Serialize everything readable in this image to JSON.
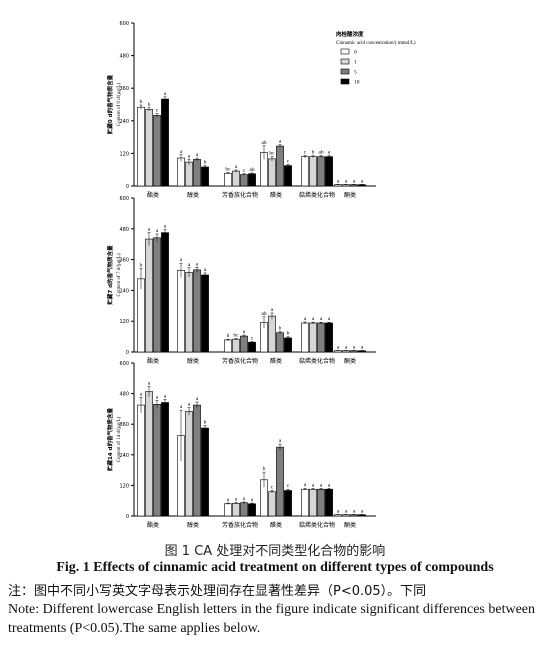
{
  "chart_data": [
    {
      "type": "bar",
      "ylabel_zh": "贮藏0 d的香气物质含量",
      "ylabel_en": "Content of 0 d/(μg/L)",
      "yticks": [
        "0",
        "120",
        "240",
        "360",
        "480",
        "600"
      ],
      "ylim": [
        0,
        600
      ],
      "categories": [
        "酯类",
        "醇类",
        "芳香族化合物",
        "醛类",
        "萜烯类化合物",
        "酮类"
      ],
      "series": [
        {
          "name": "0",
          "values": [
            290,
            103,
            47,
            123,
            108,
            5
          ],
          "errors": [
            8,
            12,
            3,
            25,
            5,
            1
          ],
          "letters": [
            "b",
            "a",
            "bc",
            "ab",
            "c",
            "a"
          ]
        },
        {
          "name": "1",
          "values": [
            282,
            88,
            55,
            100,
            108,
            5
          ],
          "errors": [
            6,
            10,
            4,
            8,
            4,
            1
          ],
          "letters": [
            "b",
            "a",
            "a",
            "bc",
            "b",
            "a"
          ]
        },
        {
          "name": "5",
          "values": [
            260,
            98,
            42,
            147,
            108,
            5
          ],
          "errors": [
            7,
            5,
            3,
            5,
            4,
            1
          ],
          "letters": [
            "c",
            "a",
            "c",
            "a",
            "ab",
            "a"
          ]
        },
        {
          "name": "10",
          "values": [
            320,
            70,
            45,
            75,
            108,
            5
          ],
          "errors": [
            8,
            5,
            3,
            5,
            4,
            1
          ],
          "letters": [
            "a",
            "b",
            "ab",
            "c",
            "a",
            "a"
          ]
        }
      ]
    },
    {
      "type": "bar",
      "ylabel_zh": "贮藏7 d的香气物质含量",
      "ylabel_en": "Content of 7 d/(μg/L)",
      "yticks": [
        "0",
        "120",
        "240",
        "360",
        "480",
        "600"
      ],
      "ylim": [
        0,
        600
      ],
      "categories": [
        "酯类",
        "醇类",
        "芳香族化合物",
        "醛类",
        "萜烯类化合物",
        "酮类"
      ],
      "series": [
        {
          "name": "0",
          "values": [
            285,
            318,
            47,
            115,
            113,
            5
          ],
          "errors": [
            40,
            28,
            3,
            22,
            4,
            1
          ],
          "letters": [
            "b",
            "a",
            "b",
            "ab",
            "a",
            "a"
          ]
        },
        {
          "name": "1",
          "values": [
            440,
            310,
            50,
            140,
            113,
            5
          ],
          "errors": [
            25,
            18,
            3,
            12,
            3,
            1
          ],
          "letters": [
            "a",
            "a",
            "bc",
            "a",
            "a",
            "a"
          ]
        },
        {
          "name": "5",
          "values": [
            445,
            320,
            62,
            75,
            113,
            5
          ],
          "errors": [
            15,
            10,
            4,
            5,
            3,
            1
          ],
          "letters": [
            "a",
            "a",
            "a",
            "b",
            "a",
            "a"
          ]
        },
        {
          "name": "10",
          "values": [
            465,
            300,
            38,
            55,
            113,
            5
          ],
          "errors": [
            12,
            8,
            3,
            5,
            3,
            1
          ],
          "letters": [
            "a",
            "a",
            "c",
            "b",
            "a",
            "a"
          ]
        }
      ]
    },
    {
      "type": "bar",
      "ylabel_zh": "贮藏14 d的香气物质含量",
      "ylabel_en": "Content of 14 d/(μg/L)",
      "yticks": [
        "0",
        "120",
        "240",
        "360",
        "480",
        "600"
      ],
      "ylim": [
        0,
        600
      ],
      "categories": [
        "酯类",
        "醇类",
        "芳香族化合物",
        "醛类",
        "萜烯类化合物",
        "酮类"
      ],
      "series": [
        {
          "name": "0",
          "values": [
            435,
            315,
            48,
            142,
            105,
            5
          ],
          "errors": [
            30,
            100,
            3,
            30,
            4,
            1
          ],
          "letters": [
            "a",
            "a",
            "a",
            "b",
            "a",
            "a"
          ]
        },
        {
          "name": "1",
          "values": [
            488,
            410,
            50,
            95,
            105,
            5
          ],
          "errors": [
            20,
            15,
            3,
            5,
            3,
            1
          ],
          "letters": [
            "a",
            "a",
            "a",
            "c",
            "a",
            "a"
          ]
        },
        {
          "name": "5",
          "values": [
            438,
            435,
            52,
            270,
            105,
            5
          ],
          "errors": [
            15,
            12,
            3,
            12,
            3,
            1
          ],
          "letters": [
            "a",
            "a",
            "a",
            "a",
            "a",
            "a"
          ]
        },
        {
          "name": "10",
          "values": [
            445,
            345,
            48,
            100,
            105,
            5
          ],
          "errors": [
            12,
            10,
            3,
            5,
            3,
            1
          ],
          "letters": [
            "a",
            "b",
            "a",
            "c",
            "a",
            "a"
          ]
        }
      ]
    }
  ],
  "legend": {
    "title_zh": "肉桂酸浓度",
    "title_en": "Cinnamic acid concentration/( mmol/L)",
    "placement": "top-right"
  },
  "series_colors": [
    "#ffffff",
    "#d6d6d6",
    "#7f7f7f",
    "#000000"
  ],
  "caption": {
    "zh": "图 1 CA 处理对不同类型化合物的影响",
    "en": "Fig. 1 Effects of cinnamic acid treatment on different types of compounds"
  },
  "note": {
    "zh": "注：图中不同小写英文字母表示处理间存在显著性差异（P<0.05）。下同",
    "en": "Note: Different lowercase English letters in the figure indicate significant differences between treatments (P<0.05).The same applies below."
  }
}
